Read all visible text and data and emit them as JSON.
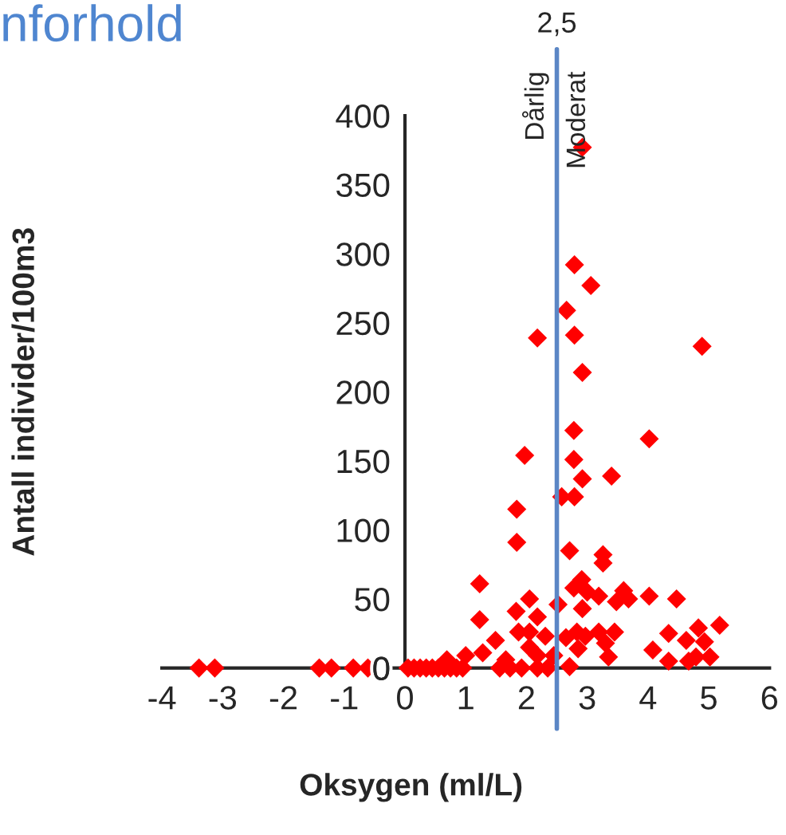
{
  "chart_data": {
    "type": "scatter",
    "title": "nforhold",
    "xlabel": "Oksygen (ml/L)",
    "ylabel": "Antall individer/100m3",
    "xlim": [
      -4,
      6
    ],
    "xticks": [
      -4,
      -3,
      -2,
      -1,
      0,
      1,
      2,
      3,
      4,
      5,
      6
    ],
    "ylim": [
      0,
      400
    ],
    "yticks": [
      0,
      50,
      100,
      150,
      200,
      250,
      300,
      350,
      400
    ],
    "grid": false,
    "legend": false,
    "marker": "diamond",
    "ref_lines": [
      {
        "axis": "x",
        "value": 2.5,
        "label": "2,5",
        "color": "#5b86c5",
        "line_style": "solid"
      }
    ],
    "annotations": [
      "Dårlig",
      "Moderat"
    ],
    "series": [
      {
        "color": "#ff0000",
        "x": [
          -3.39,
          -3.13,
          -1.41,
          -1.21,
          -0.85,
          -0.61,
          0.05,
          0.15,
          0.25,
          0.35,
          0.45,
          0.55,
          0.65,
          0.75,
          0.85,
          0.95,
          0.69,
          1.0,
          2.78,
          4.02,
          1.97,
          2.78,
          2.92,
          3.4,
          2.58,
          2.79,
          1.84,
          1.84,
          2.71,
          3.26,
          3.26,
          1.23,
          2.91,
          2.78,
          3.0,
          3.19,
          3.6,
          3.68,
          3.48,
          4.02,
          4.47,
          2.05,
          2.52,
          2.92,
          1.83,
          2.18,
          1.23,
          5.18,
          4.83,
          1.87,
          2.05,
          2.31,
          4.34,
          2.83,
          3.19,
          3.45,
          2.65,
          2.97,
          4.93,
          4.63,
          1.49,
          3.3,
          2.85,
          4.08,
          1.28,
          2.05,
          3.35,
          5.02,
          4.79,
          4.34,
          2.45,
          2.18,
          1.66,
          4.67,
          2.71,
          1.56,
          1.73,
          1.92,
          2.18,
          2.35,
          2.92,
          2.79,
          3.06,
          2.66,
          2.79,
          2.18,
          4.89,
          2.92
        ],
        "values": [
          0,
          0,
          0,
          0,
          0,
          0,
          0,
          0,
          0,
          0,
          0,
          0,
          0,
          0,
          0,
          0,
          6,
          9,
          172,
          166,
          154,
          151,
          137,
          139,
          124,
          124,
          115,
          91,
          85,
          82,
          76,
          61,
          64,
          58,
          55,
          52,
          56,
          50,
          48,
          52,
          50,
          50,
          46,
          43,
          41,
          37,
          35,
          31,
          29,
          26,
          26,
          23,
          25,
          26,
          26,
          26,
          22,
          23,
          19,
          20,
          20,
          18,
          14,
          13,
          11,
          15,
          8,
          8,
          8,
          5,
          9,
          9,
          6,
          5,
          1,
          0,
          0,
          0,
          0,
          0,
          377,
          292,
          277,
          259,
          241,
          239,
          233,
          214
        ]
      }
    ]
  }
}
